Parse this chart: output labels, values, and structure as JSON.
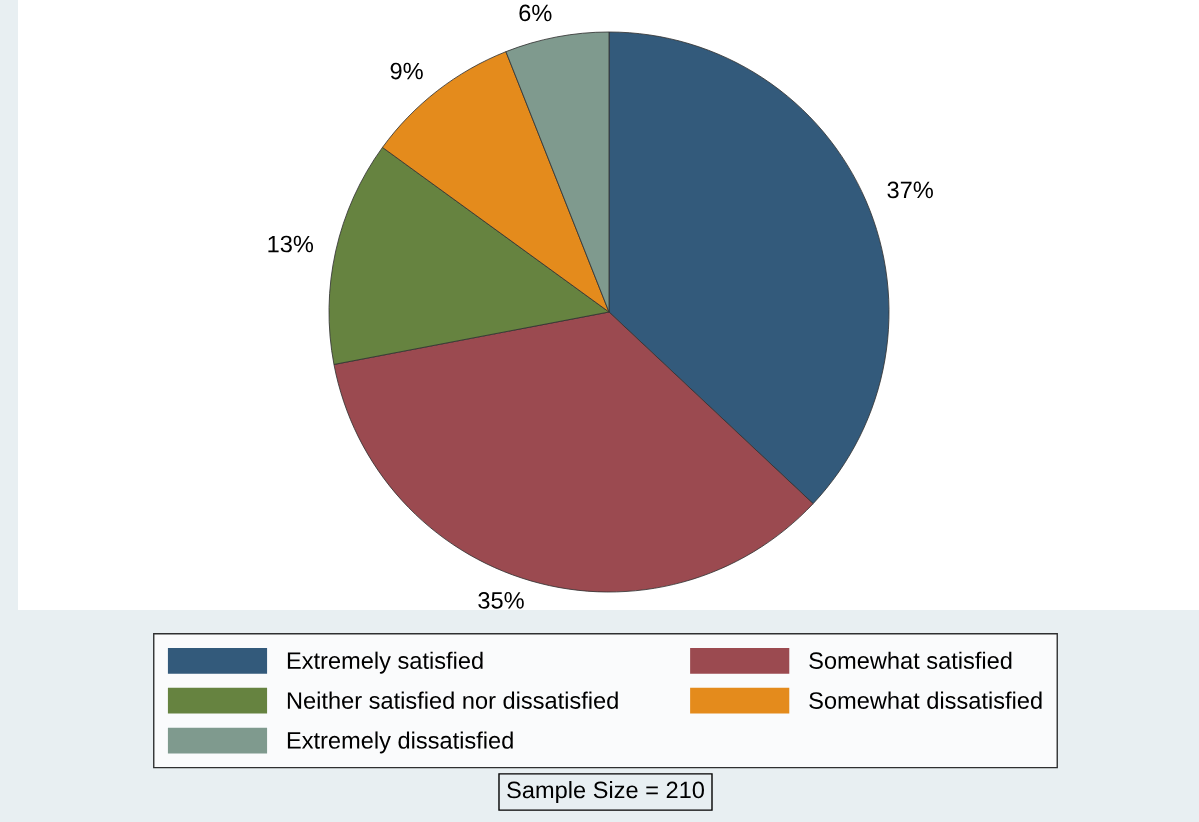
{
  "chart_data": {
    "type": "pie",
    "categories": [
      "Extremely satisfied",
      "Somewhat satisfied",
      "Neither satisfied nor dissatisfied",
      "Somewhat dissatisfied",
      "Extremely dissatisfied"
    ],
    "values": [
      37,
      35,
      13,
      9,
      6
    ],
    "colors": [
      "#335a7b",
      "#9b4a50",
      "#668340",
      "#e48b1c",
      "#7f9a8e"
    ],
    "value_labels": [
      "37%",
      "35%",
      "13%",
      "9%",
      "6%"
    ],
    "legend": "bottom",
    "annotations": [
      "Sample Size = 210"
    ]
  }
}
